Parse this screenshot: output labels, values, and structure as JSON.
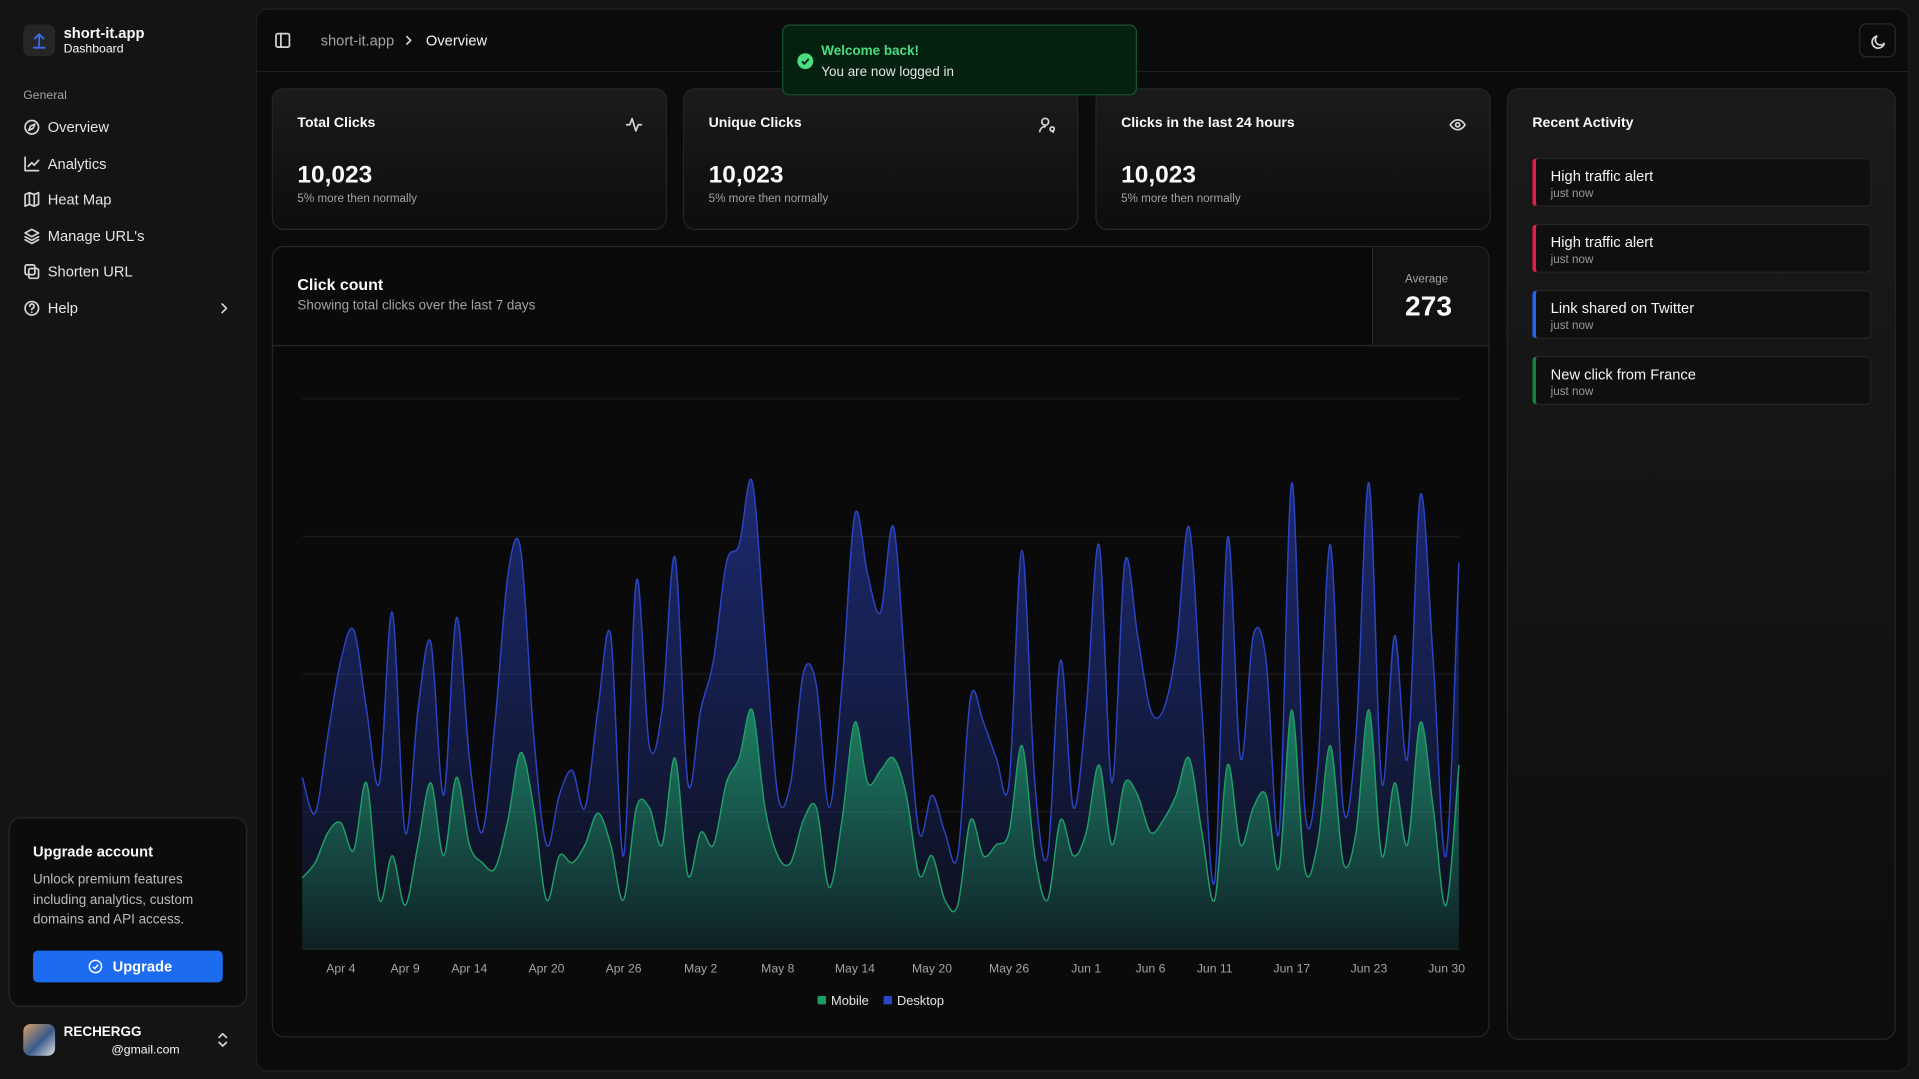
{
  "sidebar": {
    "brand": {
      "name": "short-it.app",
      "subtitle": "Dashboard"
    },
    "section": "General",
    "nav": [
      "Overview",
      "Analytics",
      "Heat Map",
      "Manage URL's",
      "Shorten URL",
      "Help"
    ],
    "upgrade": {
      "title": "Upgrade account",
      "text": "Unlock premium features including analytics, custom domains and API access.",
      "button": "Upgrade"
    },
    "user": {
      "name": "RECHERGG",
      "email": "@gmail.com"
    }
  },
  "header": {
    "breadcrumb": [
      "short-it.app",
      "Overview"
    ]
  },
  "toast": {
    "title": "Welcome back!",
    "message": "You are now logged in"
  },
  "stats": [
    {
      "title": "Total Clicks",
      "value": "10,023",
      "note": "5% more then normally"
    },
    {
      "title": "Unique Clicks",
      "value": "10,023",
      "note": "5% more then normally"
    },
    {
      "title": "Clicks in the last 24 hours",
      "value": "10,023",
      "note": "5% more then normally"
    }
  ],
  "chart_card": {
    "title": "Click count",
    "subtitle": "Showing total clicks over the last 7 days",
    "average_label": "Average",
    "average": 273
  },
  "activity": {
    "title": "Recent Activity",
    "items": [
      {
        "title": "High traffic alert",
        "time": "just now"
      },
      {
        "title": "High traffic alert",
        "time": "just now"
      },
      {
        "title": "Link shared on Twitter",
        "time": "just now"
      },
      {
        "title": "New click from France",
        "time": "just now"
      }
    ]
  },
  "chart_data": {
    "type": "area",
    "x": [
      null,
      null,
      null,
      "Apr 4",
      null,
      null,
      null,
      null,
      "Apr 9",
      null,
      null,
      null,
      null,
      "Apr 14",
      null,
      null,
      null,
      null,
      null,
      "Apr 20",
      null,
      null,
      null,
      null,
      null,
      "Apr 26",
      null,
      null,
      null,
      null,
      null,
      "May 2",
      null,
      null,
      null,
      null,
      null,
      "May 8",
      null,
      null,
      null,
      null,
      null,
      "May 14",
      null,
      null,
      null,
      null,
      null,
      "May 20",
      null,
      null,
      null,
      null,
      null,
      "May 26",
      null,
      null,
      null,
      null,
      null,
      "Jun 1",
      null,
      null,
      null,
      null,
      "Jun 6",
      null,
      null,
      null,
      null,
      "Jun 11",
      null,
      null,
      null,
      null,
      null,
      "Jun 17",
      null,
      null,
      null,
      null,
      null,
      "Jun 23",
      null,
      null,
      null,
      null,
      null,
      null,
      "Jun 30"
    ],
    "series": [
      {
        "name": "Mobile",
        "color": "#1f9d67",
        "values": [
          52,
          63,
          85,
          92,
          72,
          121,
          36,
          68,
          32,
          76,
          121,
          68,
          125,
          76,
          63,
          59,
          94,
          143,
          103,
          36,
          68,
          63,
          76,
          99,
          76,
          36,
          103,
          103,
          76,
          139,
          54,
          85,
          76,
          121,
          139,
          174,
          103,
          68,
          63,
          94,
          103,
          45,
          94,
          165,
          121,
          130,
          139,
          112,
          54,
          68,
          36,
          32,
          94,
          68,
          76,
          85,
          148,
          68,
          36,
          94,
          68,
          85,
          134,
          76,
          121,
          112,
          85,
          94,
          112,
          139,
          85,
          36,
          134,
          76,
          103,
          112,
          59,
          174,
          59,
          76,
          148,
          63,
          85,
          174,
          68,
          121,
          76,
          165,
          103,
          32,
          134
        ]
      },
      {
        "name": "Desktop",
        "color": "#2b44c4",
        "values": [
          125,
          99,
          156,
          210,
          232,
          174,
          121,
          245,
          85,
          174,
          223,
          112,
          241,
          139,
          85,
          165,
          272,
          290,
          156,
          76,
          112,
          130,
          103,
          174,
          228,
          68,
          268,
          148,
          174,
          285,
          121,
          174,
          210,
          281,
          294,
          340,
          228,
          112,
          121,
          201,
          192,
          103,
          192,
          316,
          272,
          245,
          307,
          192,
          85,
          112,
          85,
          68,
          183,
          165,
          139,
          121,
          290,
          121,
          68,
          210,
          103,
          174,
          294,
          121,
          281,
          228,
          174,
          174,
          218,
          307,
          174,
          50,
          299,
          139,
          228,
          210,
          85,
          339,
          103,
          130,
          294,
          103,
          156,
          339,
          121,
          228,
          139,
          330,
          210,
          68,
          281
        ]
      }
    ],
    "ylim": [
      0,
      400
    ],
    "yticks": [
      0,
      100,
      200,
      300,
      400
    ],
    "grid": true
  }
}
